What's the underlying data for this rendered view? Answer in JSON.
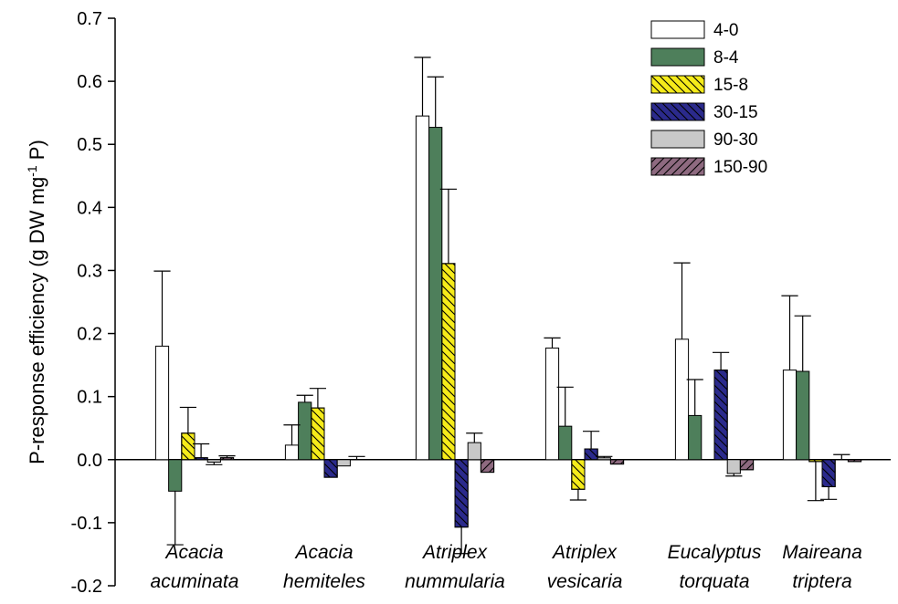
{
  "chart_data": {
    "type": "bar",
    "ylabel": "P-response efficiency (g DW mg",
    "ylabel_sup": "-1",
    "ylabel_tail": " P)",
    "ylim": [
      -0.2,
      0.7
    ],
    "yticks": [
      "-0.2",
      "-0.1",
      "0.0",
      "0.1",
      "0.2",
      "0.3",
      "0.4",
      "0.5",
      "0.6",
      "0.7"
    ],
    "ytick_values": [
      -0.2,
      -0.1,
      0.0,
      0.1,
      0.2,
      0.3,
      0.4,
      0.5,
      0.6,
      0.7
    ],
    "categories": [
      [
        "Acacia",
        "acuminata"
      ],
      [
        "Acacia",
        "hemiteles"
      ],
      [
        "Atriplex",
        "nummularia"
      ],
      [
        "Atriplex",
        "vesicaria"
      ],
      [
        "Eucalyptus",
        "torquata"
      ],
      [
        "Maireana",
        "triptera"
      ]
    ],
    "legend_position": "top-right",
    "series": [
      {
        "name": "4-0",
        "color": "#ffffff",
        "pattern": "none",
        "values": [
          0.18,
          0.023,
          0.545,
          0.177,
          0.191,
          0.142
        ],
        "errors": [
          0.119,
          0.032,
          0.093,
          0.016,
          0.121,
          0.118
        ]
      },
      {
        "name": "8-4",
        "color": "#4e7f5b",
        "pattern": "none",
        "values": [
          -0.05,
          0.091,
          0.527,
          0.053,
          0.07,
          0.14
        ],
        "errors": [
          0.085,
          0.011,
          0.08,
          0.062,
          0.057,
          0.088
        ]
      },
      {
        "name": "15-8",
        "color": "#f5eb1a",
        "pattern": "hatch-back",
        "values": [
          0.042,
          0.082,
          0.311,
          -0.047,
          0.0,
          -0.003
        ],
        "errors": [
          0.041,
          0.031,
          0.118,
          0.017,
          0.0,
          0.062
        ]
      },
      {
        "name": "30-15",
        "color": "#2b2a8c",
        "pattern": "hatch-back",
        "values": [
          0.003,
          -0.028,
          -0.107,
          0.017,
          0.142,
          -0.043
        ],
        "errors": [
          0.022,
          0.0,
          0.042,
          0.028,
          0.028,
          0.02
        ]
      },
      {
        "name": "90-30",
        "color": "#c8c8c8",
        "pattern": "none",
        "values": [
          -0.004,
          -0.01,
          0.027,
          0.003,
          -0.022,
          0.0
        ],
        "errors": [
          0.004,
          0.0,
          0.015,
          0.002,
          0.004,
          0.008
        ]
      },
      {
        "name": "150-90",
        "color": "#8e6a80",
        "pattern": "hatch-fwd",
        "values": [
          0.003,
          0.0,
          -0.02,
          -0.007,
          -0.016,
          -0.003
        ],
        "errors": [
          0.003,
          0.005,
          0.0,
          0.0,
          0.0,
          0.0
        ]
      }
    ]
  }
}
